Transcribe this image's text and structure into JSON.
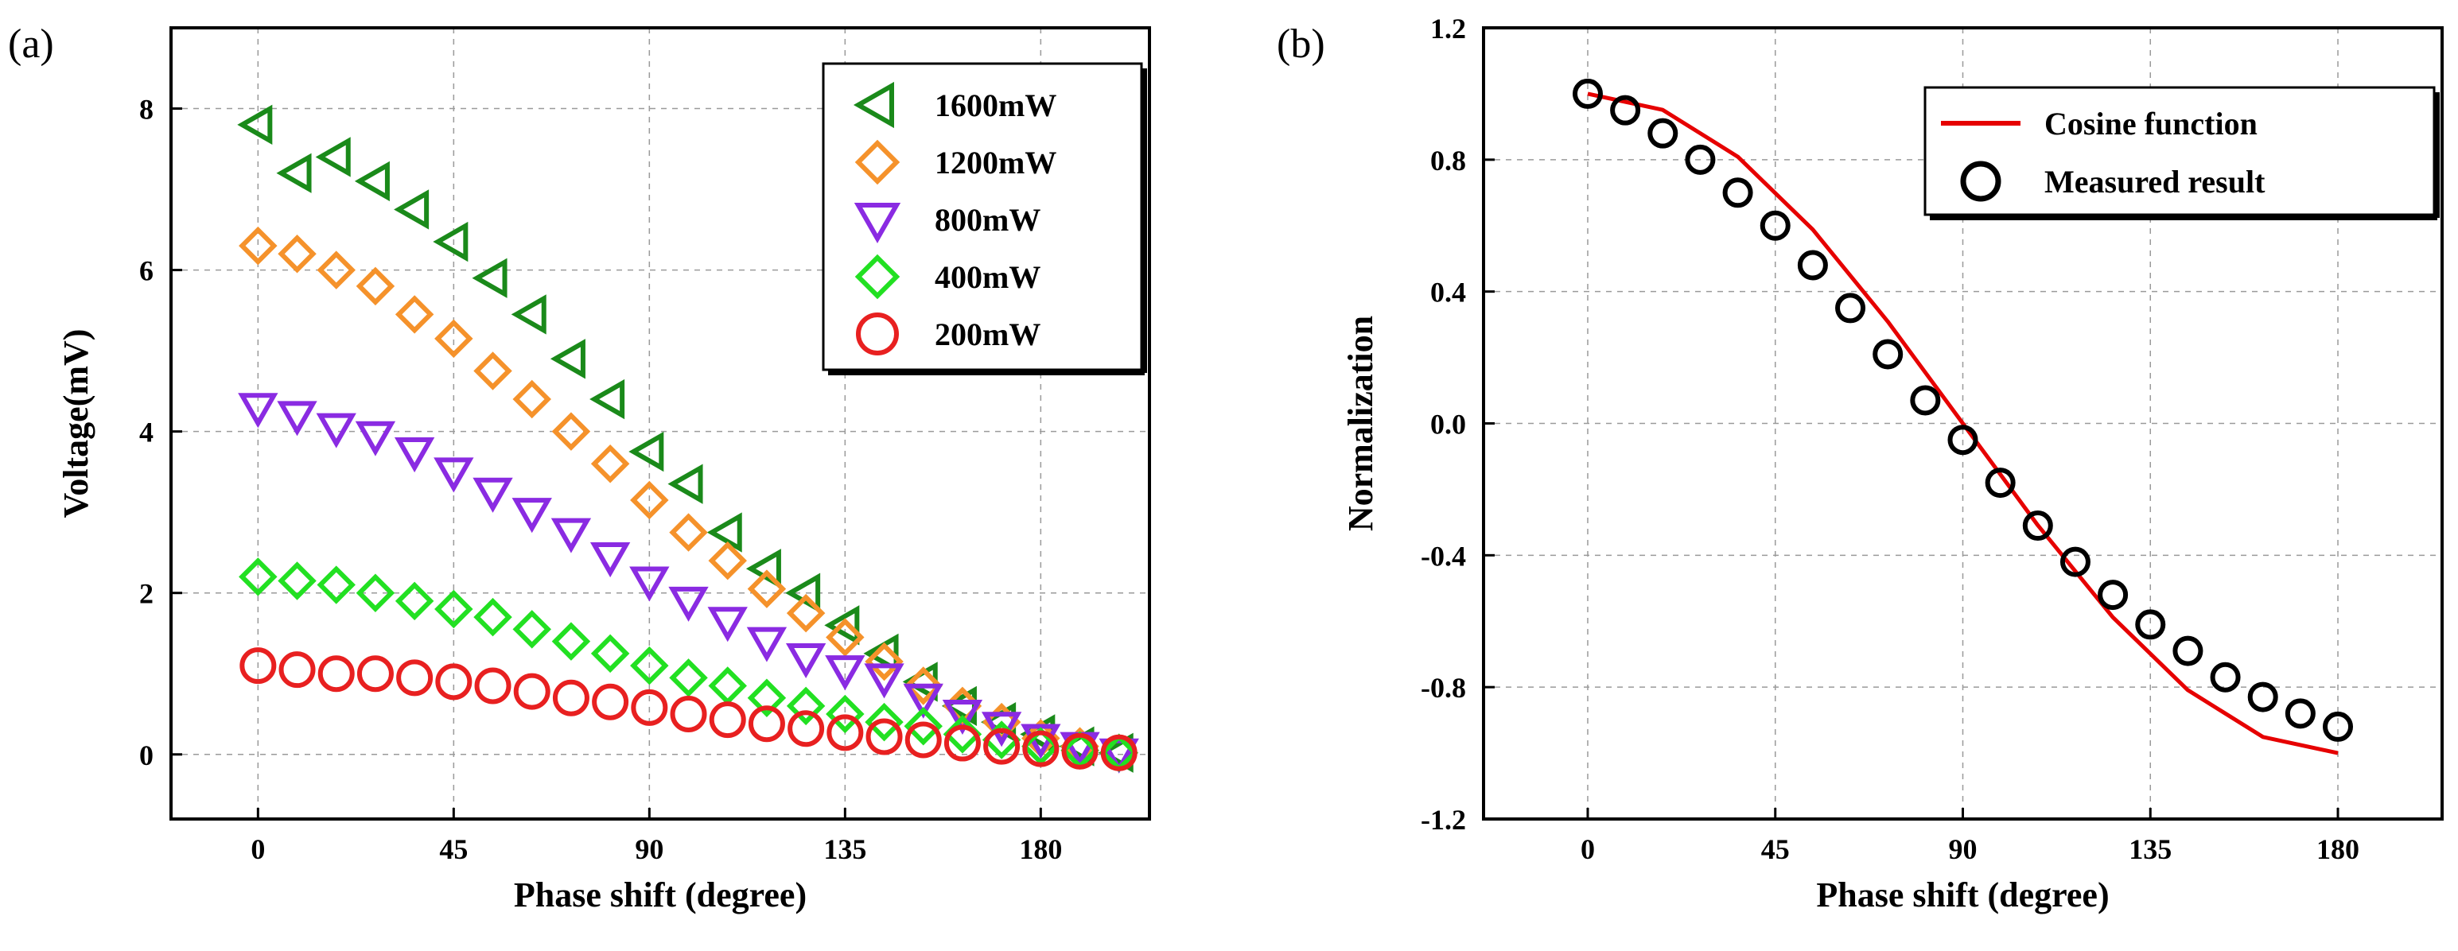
{
  "chart_data": [
    {
      "panel_label": "(a)",
      "type": "scatter",
      "title": "",
      "xlabel": "Phase shift (degree)",
      "ylabel": "Voltage(mV)",
      "xlim": [
        -20,
        205
      ],
      "ylim": [
        -0.8,
        9
      ],
      "xticks": [
        0,
        45,
        90,
        135,
        180
      ],
      "yticks": [
        0,
        2,
        4,
        6,
        8
      ],
      "xtick_labels": [
        "0",
        "45",
        "90",
        "135",
        "180"
      ],
      "ytick_labels": [
        "0",
        "2",
        "4",
        "6",
        "8"
      ],
      "grid": true,
      "legend_position": "top-right",
      "x": [
        0,
        9,
        18,
        27,
        36,
        45,
        54,
        63,
        72,
        81,
        90,
        99,
        108,
        117,
        126,
        135,
        144,
        153,
        162,
        171,
        180,
        189,
        198
      ],
      "series": [
        {
          "name": "1600mW",
          "marker": "triangle-left",
          "color": "#1a8a1a",
          "values": [
            7.8,
            7.2,
            7.4,
            7.1,
            6.75,
            6.35,
            5.9,
            5.45,
            4.9,
            4.4,
            3.75,
            3.35,
            2.75,
            2.3,
            2.0,
            1.6,
            1.25,
            0.9,
            0.6,
            0.4,
            0.25,
            0.1,
            0.02
          ]
        },
        {
          "name": "1200mW",
          "marker": "diamond",
          "color": "#f5922b",
          "values": [
            6.3,
            6.2,
            6.0,
            5.8,
            5.45,
            5.15,
            4.75,
            4.4,
            4.0,
            3.6,
            3.15,
            2.75,
            2.4,
            2.05,
            1.75,
            1.45,
            1.15,
            0.85,
            0.6,
            0.4,
            0.2,
            0.1,
            0.02
          ]
        },
        {
          "name": "800mW",
          "marker": "triangle-down",
          "color": "#8a2be2",
          "values": [
            4.3,
            4.2,
            4.05,
            3.95,
            3.75,
            3.5,
            3.25,
            3.0,
            2.75,
            2.45,
            2.15,
            1.9,
            1.65,
            1.4,
            1.2,
            1.05,
            0.95,
            0.7,
            0.5,
            0.35,
            0.2,
            0.1,
            0.02
          ]
        },
        {
          "name": "400mW",
          "marker": "diamond",
          "color": "#22e022",
          "values": [
            2.2,
            2.15,
            2.1,
            2.0,
            1.9,
            1.8,
            1.7,
            1.55,
            1.4,
            1.25,
            1.1,
            0.95,
            0.85,
            0.7,
            0.6,
            0.5,
            0.4,
            0.35,
            0.25,
            0.18,
            0.1,
            0.05,
            0.02
          ]
        },
        {
          "name": "200mW",
          "marker": "circle",
          "color": "#e82020",
          "values": [
            1.1,
            1.05,
            1.0,
            1.0,
            0.95,
            0.9,
            0.85,
            0.78,
            0.7,
            0.65,
            0.58,
            0.5,
            0.43,
            0.38,
            0.32,
            0.27,
            0.22,
            0.18,
            0.14,
            0.1,
            0.07,
            0.04,
            0.02
          ]
        }
      ]
    },
    {
      "panel_label": "(b)",
      "type": "line",
      "title": "",
      "xlabel": "Phase shift (degree)",
      "ylabel": "Normalization",
      "xlim": [
        -25,
        205
      ],
      "ylim": [
        -1.2,
        1.2
      ],
      "xticks": [
        0,
        45,
        90,
        135,
        180
      ],
      "yticks": [
        -1.2,
        -0.8,
        -0.4,
        0.0,
        0.4,
        0.8,
        1.2
      ],
      "xtick_labels": [
        "0",
        "45",
        "90",
        "135",
        "180"
      ],
      "ytick_labels": [
        "-1.2",
        "-0.8",
        "-0.4",
        "0.0",
        "0.4",
        "0.8",
        "1.2"
      ],
      "grid": true,
      "legend_position": "top-right",
      "series": [
        {
          "name": "Cosine function",
          "style": "line",
          "color": "#e60000",
          "x": [
            0,
            18,
            36,
            54,
            72,
            90,
            108,
            126,
            144,
            162,
            180
          ],
          "values": [
            1.0,
            0.951,
            0.809,
            0.588,
            0.309,
            0.0,
            -0.309,
            -0.588,
            -0.809,
            -0.951,
            -1.0
          ]
        },
        {
          "name": "Measured result",
          "style": "marker-circle",
          "color": "#000000",
          "x": [
            0,
            9,
            18,
            27,
            36,
            45,
            54,
            63,
            72,
            81,
            90,
            99,
            108,
            117,
            126,
            135,
            144,
            153,
            162,
            171,
            180
          ],
          "values": [
            1.0,
            0.95,
            0.88,
            0.8,
            0.7,
            0.6,
            0.48,
            0.35,
            0.21,
            0.07,
            -0.05,
            -0.18,
            -0.31,
            -0.42,
            -0.52,
            -0.61,
            -0.69,
            -0.77,
            -0.83,
            -0.88,
            -0.92
          ]
        }
      ]
    }
  ]
}
